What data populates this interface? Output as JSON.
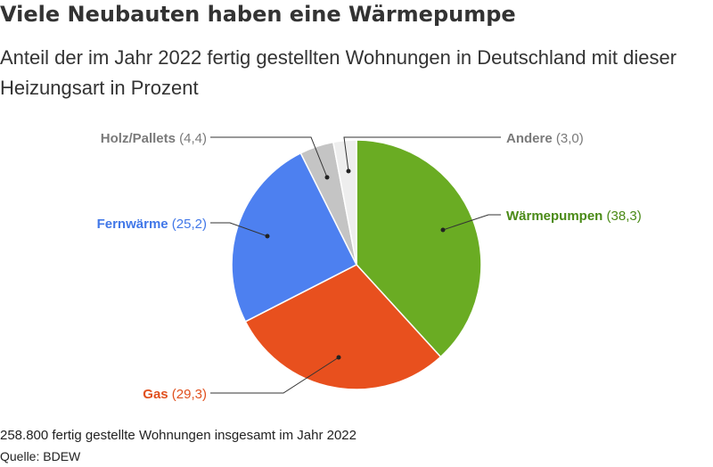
{
  "title": "Viele Neubauten haben eine Wärmepumpe",
  "subtitle": "Anteil der im Jahr 2022 fertig gestellten Wohnungen in Deutschland mit dieser Heizungsart in Prozent",
  "footnote": "258.800 fertig gestellte Wohnungen insgesamt im Jahr 2022",
  "source": "Quelle: BDEW",
  "chart_data": {
    "type": "pie",
    "title": "Viele Neubauten haben eine Wärmepumpe",
    "subtitle": "Anteil der im Jahr 2022 fertig gestellten Wohnungen in Deutschland mit dieser Heizungsart in Prozent",
    "slices": [
      {
        "name": "Wärmepumpen",
        "value": 38.3,
        "value_label": "(38,3)",
        "color": "#6aac23",
        "label_color": "#4a8a16"
      },
      {
        "name": "Gas",
        "value": 29.3,
        "value_label": "(29,3)",
        "color": "#e8501e",
        "label_color": "#e0501e"
      },
      {
        "name": "Fernwärme",
        "value": 25.2,
        "value_label": "(25,2)",
        "color": "#4d80f0",
        "label_color": "#4278e8"
      },
      {
        "name": "Holz/Pallets",
        "value": 4.4,
        "value_label": "(4,4)",
        "color": "#c4c4c4",
        "label_color": "#7a7a7a"
      },
      {
        "name": "Andere",
        "value": 3.0,
        "value_label": "(3,0)",
        "color": "#eeeeee",
        "label_color": "#7a7a7a"
      }
    ]
  }
}
